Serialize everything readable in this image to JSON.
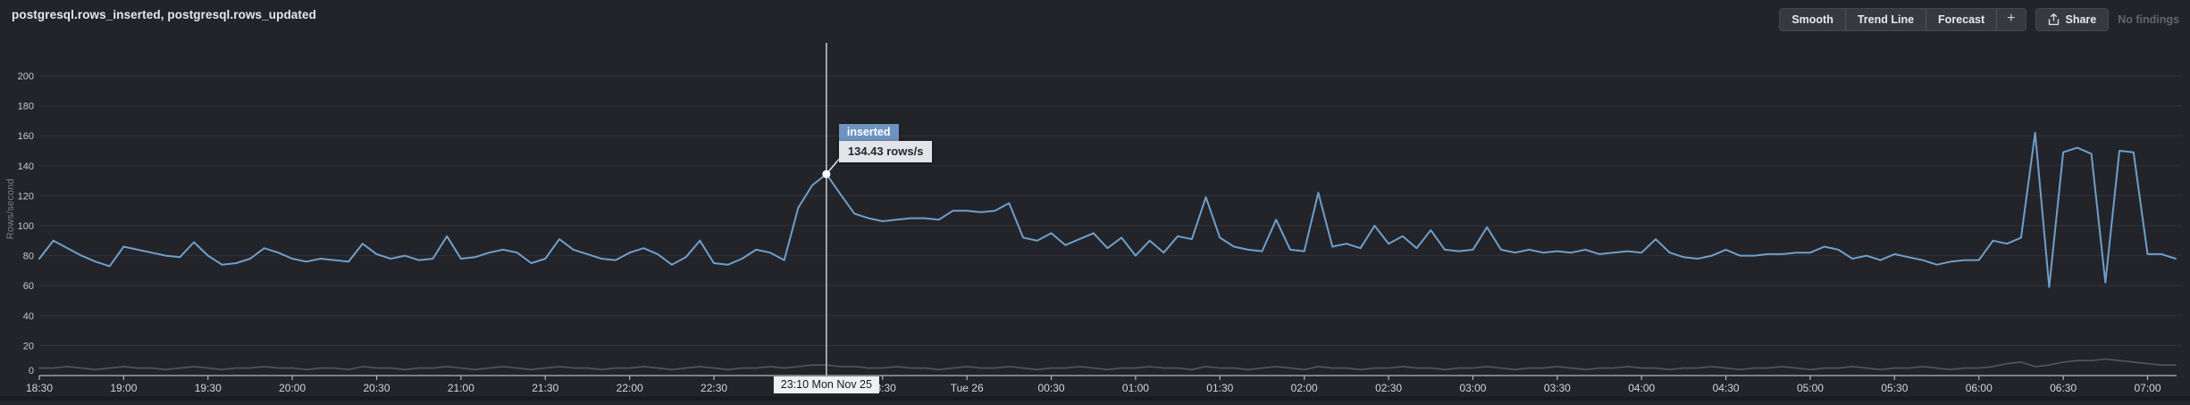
{
  "header": {
    "title": "postgresql.rows_inserted, postgresql.rows_updated",
    "toolbar": {
      "smooth": "Smooth",
      "trend_line": "Trend Line",
      "forecast": "Forecast",
      "add": "+",
      "share": "Share"
    },
    "no_findings": "No findings"
  },
  "chart_data": {
    "type": "line",
    "title": "postgresql.rows_inserted, postgresql.rows_updated",
    "xlabel": "",
    "ylabel": "Rows/second",
    "ylim": [
      0,
      200
    ],
    "yticks": [
      0,
      20,
      40,
      60,
      80,
      100,
      120,
      140,
      160,
      180,
      200
    ],
    "grid": true,
    "legend_position": "none",
    "x_start_label": "18:30",
    "x_interval_minutes": 5,
    "xtick_every_points": 6,
    "xticks": [
      "18:30",
      "19:00",
      "19:30",
      "20:00",
      "20:30",
      "21:00",
      "21:30",
      "22:00",
      "22:30",
      "23:00",
      "23:30",
      "Tue 26",
      "00:30",
      "01:00",
      "01:30",
      "02:00",
      "02:30",
      "03:00",
      "03:30",
      "04:00",
      "04:30",
      "05:00",
      "05:30",
      "06:00",
      "06:30",
      "07:00"
    ],
    "series": [
      {
        "name": "updated",
        "metric": "postgresql.rows_updated",
        "color": "#55575f",
        "values": [
          5,
          5,
          6,
          5,
          4,
          5,
          6,
          5,
          5,
          4,
          5,
          6,
          5,
          4,
          5,
          5,
          6,
          5,
          5,
          4,
          5,
          5,
          4,
          6,
          5,
          5,
          4,
          5,
          5,
          6,
          5,
          4,
          5,
          6,
          5,
          4,
          5,
          6,
          5,
          5,
          4,
          5,
          5,
          6,
          5,
          4,
          5,
          6,
          5,
          4,
          5,
          5,
          6,
          5,
          6,
          7,
          7,
          6,
          6,
          5,
          5,
          6,
          5,
          5,
          4,
          5,
          6,
          5,
          5,
          6,
          5,
          4,
          5,
          5,
          6,
          5,
          4,
          5,
          5,
          6,
          5,
          5,
          4,
          6,
          5,
          5,
          4,
          5,
          6,
          5,
          4,
          6,
          5,
          5,
          4,
          5,
          5,
          6,
          5,
          5,
          4,
          5,
          5,
          6,
          5,
          4,
          5,
          5,
          6,
          5,
          4,
          5,
          5,
          6,
          5,
          5,
          4,
          5,
          5,
          6,
          5,
          4,
          5,
          5,
          6,
          5,
          4,
          5,
          5,
          6,
          5,
          4,
          5,
          5,
          6,
          5,
          4,
          5,
          5,
          6,
          8,
          9,
          6,
          7,
          9,
          10,
          10,
          11,
          10,
          9,
          8,
          7,
          7
        ]
      },
      {
        "name": "inserted",
        "metric": "postgresql.rows_inserted",
        "color": "#6f9fcb",
        "values": [
          78,
          90,
          85,
          80,
          76,
          73,
          86,
          84,
          82,
          80,
          79,
          89,
          80,
          74,
          75,
          78,
          85,
          82,
          78,
          76,
          78,
          77,
          76,
          88,
          81,
          78,
          80,
          77,
          78,
          93,
          78,
          79,
          82,
          84,
          82,
          75,
          78,
          91,
          84,
          81,
          78,
          77,
          82,
          85,
          81,
          74,
          79,
          90,
          75,
          74,
          78,
          84,
          82,
          77,
          112,
          127,
          134.43,
          121,
          108,
          105,
          103,
          104,
          105,
          105,
          104,
          110,
          110,
          109,
          110,
          115,
          92,
          90,
          95,
          87,
          91,
          95,
          85,
          92,
          80,
          90,
          82,
          93,
          91,
          119,
          92,
          86,
          84,
          83,
          104,
          84,
          83,
          122,
          86,
          88,
          85,
          100,
          88,
          93,
          85,
          97,
          84,
          83,
          84,
          99,
          84,
          82,
          84,
          82,
          83,
          82,
          84,
          81,
          82,
          83,
          82,
          91,
          82,
          79,
          78,
          80,
          84,
          80,
          80,
          81,
          81,
          82,
          82,
          86,
          84,
          78,
          80,
          77,
          81,
          79,
          77,
          74,
          76,
          77,
          77,
          90,
          88,
          92,
          162,
          59,
          149,
          152,
          148,
          62,
          150,
          149,
          81,
          81,
          78
        ]
      }
    ],
    "crosshair": {
      "index": 56,
      "time_label": "23:10 Mon Nov 25",
      "series_label": "inserted",
      "value_label": "134.43 rows/s",
      "value": 134.43,
      "header_color": "#6e93c0"
    }
  }
}
